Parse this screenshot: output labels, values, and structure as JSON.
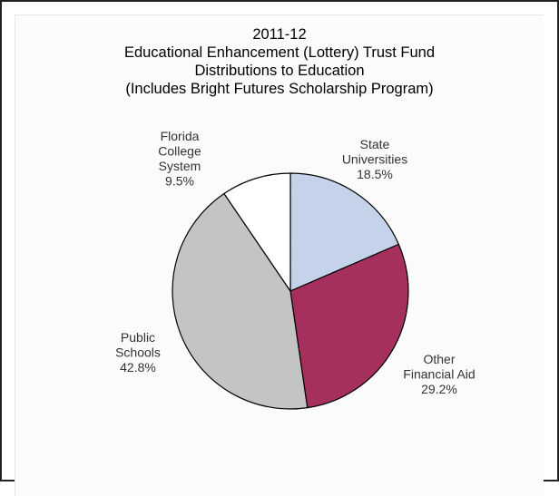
{
  "chart_data": {
    "type": "pie",
    "title_lines": [
      "2011-12",
      "Educational Enhancement (Lottery) Trust Fund",
      "Distributions to Education",
      "(Includes Bright Futures Scholarship Program)"
    ],
    "slices": [
      {
        "label_lines": [
          "State",
          "Universities"
        ],
        "value": 18.5,
        "value_label": "18.5%",
        "color": "#c5d3ea"
      },
      {
        "label_lines": [
          "Other",
          "Financial Aid"
        ],
        "value": 29.2,
        "value_label": "29.2%",
        "color": "#a5305e"
      },
      {
        "label_lines": [
          "Public",
          "Schools"
        ],
        "value": 42.8,
        "value_label": "42.8%",
        "color": "#c4c4c4"
      },
      {
        "label_lines": [
          "Florida",
          "College",
          "System"
        ],
        "value": 9.5,
        "value_label": "9.5%",
        "color": "#ffffff"
      }
    ],
    "start_angle_deg": 0,
    "direction": "clockwise",
    "legend": "none",
    "slice_border_color": "#000000"
  }
}
